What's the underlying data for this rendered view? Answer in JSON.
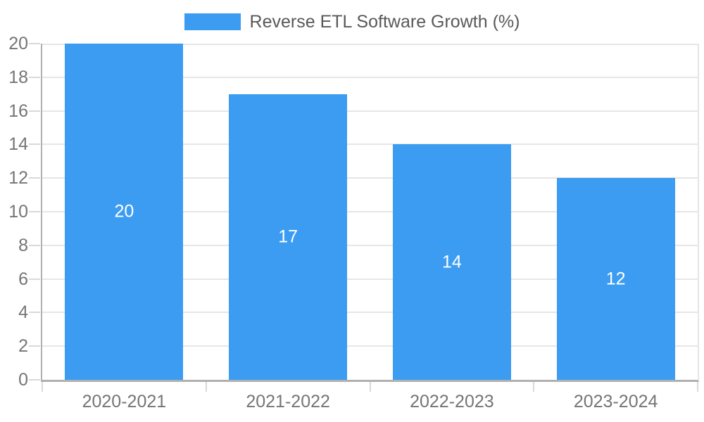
{
  "chart_data": {
    "type": "bar",
    "title": "Reverse ETL Software Growth (%)",
    "categories": [
      "2020-2021",
      "2021-2022",
      "2022-2023",
      "2023-2024"
    ],
    "values": [
      20,
      17,
      14,
      12
    ],
    "bar_labels": [
      "20",
      "17",
      "14",
      "12"
    ],
    "yticks": [
      0,
      2,
      4,
      6,
      8,
      10,
      12,
      14,
      16,
      18,
      20
    ],
    "ytick_labels": [
      "0",
      "2",
      "4",
      "6",
      "8",
      "10",
      "12",
      "14",
      "16",
      "18",
      "20"
    ],
    "ylim": [
      0,
      20
    ],
    "xlabel": "",
    "ylabel": "",
    "grid": true,
    "legend_position": "top",
    "colors": {
      "bar": "#3b9cf2",
      "bar_label": "#ffffff",
      "tick_label": "#757575",
      "legend_text": "#595959",
      "grid": "#e6e6e6",
      "axis": "#b0b0b0",
      "tick_mark": "#d9d9d9"
    }
  }
}
